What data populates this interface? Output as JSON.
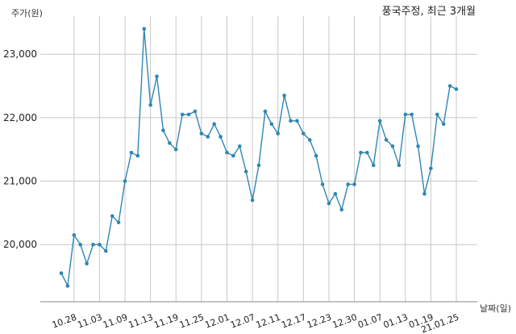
{
  "chart_data": {
    "type": "line",
    "title": "풍국주정, 최근 3개월",
    "ylabel": "주가(원)",
    "xlabel": "날짜(일)",
    "ylim": [
      19100,
      23600
    ],
    "yticks": [
      20000,
      21000,
      22000,
      23000
    ],
    "ytick_labels": [
      "20,000",
      "21,000",
      "22,000",
      "23,000"
    ],
    "grid": true,
    "xtick_labels": [
      "10.28",
      "11.03",
      "11.09",
      "11.13",
      "11.19",
      "11.25",
      "12.01",
      "12.07",
      "12.11",
      "12.17",
      "12.23",
      "12.30",
      "01.07",
      "01.13",
      "01.19",
      "21.01.25"
    ],
    "xtick_indices": [
      2,
      6,
      10,
      14,
      18,
      22,
      26,
      30,
      34,
      38,
      42,
      46,
      50,
      54,
      58,
      62
    ],
    "series": [
      {
        "values": [
          19550,
          19350,
          20150,
          20000,
          19700,
          20000,
          20000,
          19900,
          20450,
          20350,
          21000,
          21450,
          21400,
          23400,
          22200,
          22650,
          21800,
          21600,
          21500,
          22050,
          22050,
          22100,
          21750,
          21700,
          21900,
          21700,
          21450,
          21400,
          21550,
          21150,
          20700,
          21250,
          22100,
          21900,
          21750,
          22350,
          21950,
          21950,
          21750,
          21650,
          21400,
          20950,
          20650,
          20800,
          20550,
          20950,
          20950,
          21450,
          21450,
          21250,
          21950,
          21650,
          21550,
          21250,
          22050,
          22050,
          21550,
          20800,
          21200,
          22050,
          21900,
          22500,
          22450
        ]
      }
    ]
  }
}
